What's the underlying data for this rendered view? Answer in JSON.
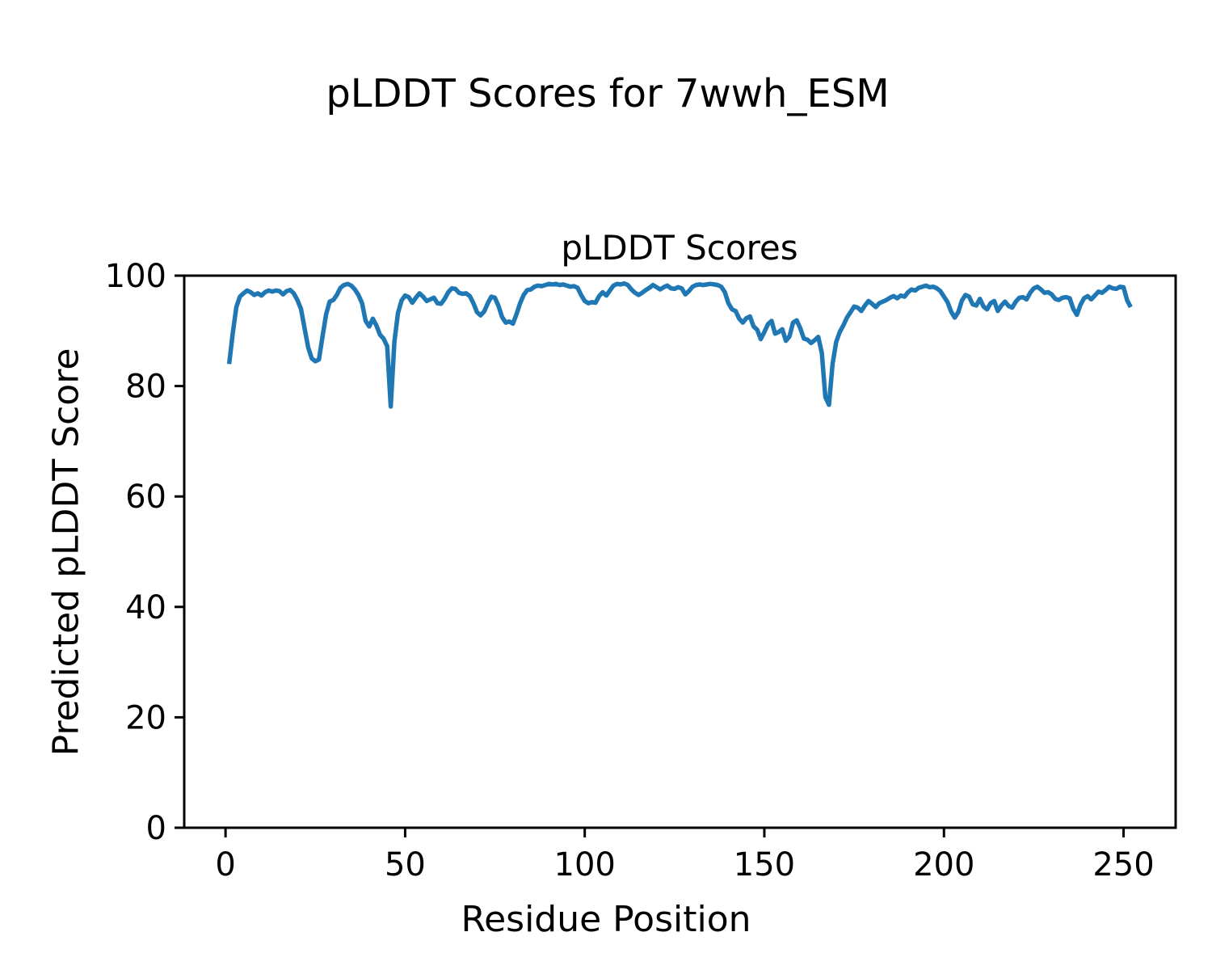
{
  "figure": {
    "suptitle": "pLDDT Scores for 7wwh_ESM",
    "background": "#ffffff"
  },
  "chart_data": {
    "type": "line",
    "title": "pLDDT Scores",
    "xlabel": "Residue Position",
    "ylabel": "Predicted pLDDT Score",
    "xlim": [
      -11.5,
      264.5
    ],
    "ylim": [
      0,
      100
    ],
    "xticks": [
      0,
      50,
      100,
      150,
      200,
      250
    ],
    "yticks": [
      0,
      20,
      40,
      60,
      80,
      100
    ],
    "grid": false,
    "line_color": "#1f77b4",
    "axis_color": "#000000",
    "series": [
      {
        "name": "pLDDT",
        "x_start": 1,
        "x_step": 1,
        "values": [
          84.0,
          89.5,
          94.3,
          96.2,
          96.8,
          97.3,
          97.0,
          96.5,
          96.8,
          96.4,
          97.0,
          97.3,
          97.1,
          97.3,
          97.2,
          96.6,
          97.2,
          97.4,
          96.8,
          95.6,
          94.0,
          90.5,
          87.0,
          85.0,
          84.5,
          84.8,
          89.0,
          93.0,
          95.3,
          95.6,
          96.5,
          97.8,
          98.3,
          98.5,
          98.2,
          97.5,
          96.5,
          95.0,
          91.8,
          90.8,
          92.2,
          91.0,
          89.3,
          88.6,
          87.2,
          76.3,
          88.0,
          93.2,
          95.5,
          96.4,
          96.1,
          95.1,
          96.0,
          96.8,
          96.2,
          95.4,
          95.7,
          96.0,
          95.0,
          94.9,
          95.8,
          97.0,
          97.7,
          97.6,
          96.9,
          96.7,
          96.8,
          96.3,
          95.0,
          93.4,
          92.8,
          93.5,
          95.0,
          96.2,
          96.0,
          94.5,
          92.5,
          91.5,
          91.7,
          91.3,
          93.0,
          95.0,
          96.5,
          97.4,
          97.5,
          98.0,
          98.2,
          98.1,
          98.3,
          98.5,
          98.4,
          98.5,
          98.3,
          98.4,
          98.2,
          98.0,
          98.1,
          97.8,
          96.5,
          95.4,
          95.0,
          95.2,
          95.1,
          96.3,
          97.0,
          96.4,
          97.3,
          98.2,
          98.5,
          98.4,
          98.6,
          98.3,
          97.5,
          96.9,
          96.5,
          96.9,
          97.4,
          97.8,
          98.3,
          97.9,
          97.5,
          97.9,
          98.2,
          97.7,
          97.6,
          97.9,
          97.7,
          96.6,
          97.2,
          98.0,
          98.3,
          98.4,
          98.3,
          98.4,
          98.5,
          98.4,
          98.3,
          98.0,
          97.0,
          95.0,
          93.9,
          93.6,
          92.2,
          91.5,
          92.3,
          92.6,
          90.8,
          90.2,
          88.5,
          89.8,
          91.2,
          91.8,
          89.5,
          89.8,
          90.3,
          88.2,
          89.0,
          91.5,
          91.9,
          90.5,
          88.6,
          88.4,
          87.8,
          88.3,
          88.9,
          86.0,
          78.0,
          76.6,
          84.0,
          88.0,
          89.8,
          91.0,
          92.4,
          93.4,
          94.4,
          94.2,
          93.6,
          94.6,
          95.4,
          94.9,
          94.3,
          95.0,
          95.3,
          95.6,
          96.0,
          96.3,
          95.9,
          96.4,
          96.2,
          97.0,
          97.5,
          97.3,
          97.8,
          98.0,
          98.2,
          97.9,
          98.0,
          97.7,
          97.2,
          96.2,
          95.2,
          93.5,
          92.4,
          93.4,
          95.5,
          96.5,
          96.2,
          94.8,
          94.6,
          95.8,
          94.4,
          93.9,
          95.0,
          95.4,
          93.6,
          94.6,
          95.3,
          94.5,
          94.2,
          95.3,
          96.0,
          96.1,
          95.7,
          96.9,
          97.7,
          98.0,
          97.5,
          96.9,
          97.0,
          96.6,
          95.8,
          95.6,
          96.0,
          96.1,
          95.9,
          94.0,
          92.9,
          94.7,
          95.9,
          96.3,
          95.7,
          96.4,
          97.1,
          96.9,
          97.4,
          98.0,
          97.7,
          97.6,
          98.0,
          97.9,
          95.5,
          94.3
        ]
      }
    ]
  }
}
